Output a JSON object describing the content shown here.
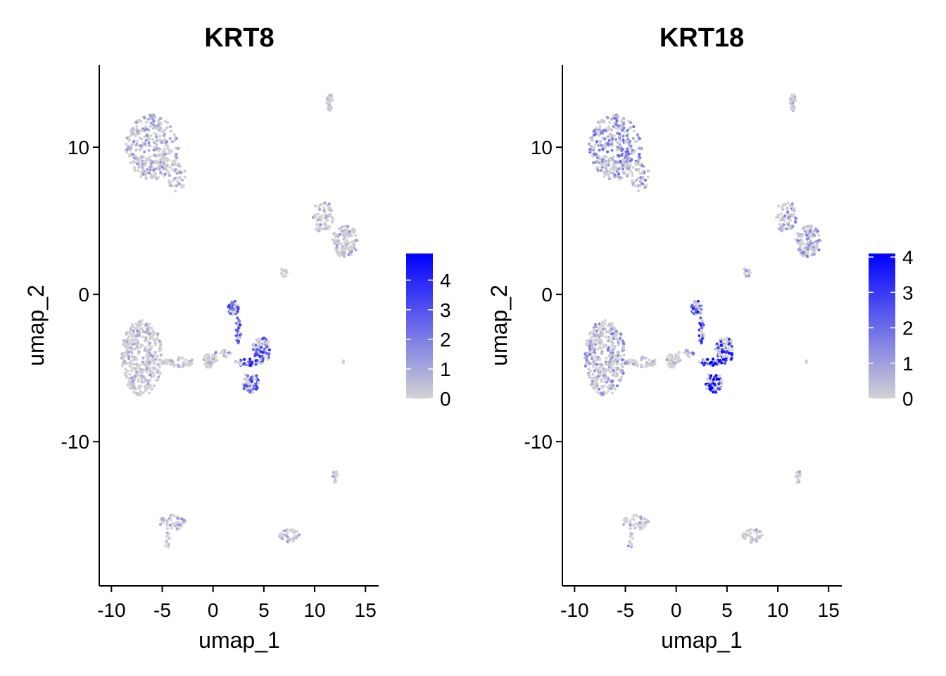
{
  "chart_data": [
    {
      "type": "scatter",
      "title": "KRT8",
      "xlabel": "umap_1",
      "ylabel": "umap_2",
      "xlim": [
        -11.2,
        16.3
      ],
      "ylim": [
        -19.8,
        15.6
      ],
      "x_ticks": [
        -10,
        -5,
        0,
        5,
        10,
        15
      ],
      "y_ticks": [
        -10,
        0,
        10
      ],
      "legend": {
        "placement": "right",
        "low_color": "#d3d3d3",
        "high_color": "#0000ff",
        "range": [
          0,
          4.9
        ],
        "ticks": [
          0,
          1,
          2,
          3,
          4
        ]
      }
    },
    {
      "type": "scatter",
      "title": "KRT18",
      "xlabel": "umap_1",
      "ylabel": "umap_2",
      "xlim": [
        -11.2,
        16.3
      ],
      "ylim": [
        -19.8,
        15.6
      ],
      "x_ticks": [
        -10,
        -5,
        0,
        5,
        10,
        15
      ],
      "y_ticks": [
        -10,
        0,
        10
      ],
      "legend": {
        "placement": "right",
        "low_color": "#d3d3d3",
        "high_color": "#0000ff",
        "range": [
          0,
          4.1
        ],
        "ticks": [
          0,
          1,
          2,
          3,
          4
        ]
      }
    }
  ],
  "clusters": [
    {
      "cx": -6.0,
      "cy": 10.0,
      "rx": 2.6,
      "ry": 2.2,
      "n": 340,
      "krt8": 0.7,
      "krt18": 1.2
    },
    {
      "cx": -3.5,
      "cy": 8.0,
      "rx": 0.9,
      "ry": 1.0,
      "n": 40,
      "krt8": 0.6,
      "krt18": 1.0
    },
    {
      "cx": 11.5,
      "cy": 13.0,
      "rx": 0.3,
      "ry": 0.6,
      "n": 30,
      "krt8": 0.2,
      "krt18": 0.4
    },
    {
      "cx": 10.8,
      "cy": 5.3,
      "rx": 1.0,
      "ry": 1.1,
      "n": 70,
      "krt8": 0.5,
      "krt18": 0.7
    },
    {
      "cx": 13.0,
      "cy": 3.6,
      "rx": 1.3,
      "ry": 1.1,
      "n": 120,
      "krt8": 0.6,
      "krt18": 0.9
    },
    {
      "cx": 7.0,
      "cy": 1.6,
      "rx": 0.3,
      "ry": 0.4,
      "n": 15,
      "krt8": 0.1,
      "krt18": 0.2
    },
    {
      "cx": -7.0,
      "cy": -4.3,
      "rx": 2.0,
      "ry": 2.6,
      "n": 360,
      "krt8": 0.4,
      "krt18": 0.8
    },
    {
      "cx": -3.5,
      "cy": -4.6,
      "rx": 1.6,
      "ry": 0.35,
      "n": 45,
      "krt8": 0.2,
      "krt18": 0.3
    },
    {
      "cx": -0.3,
      "cy": -4.5,
      "rx": 0.7,
      "ry": 0.5,
      "n": 45,
      "krt8": 0.2,
      "krt18": 0.5
    },
    {
      "cx": 2.0,
      "cy": -0.9,
      "rx": 0.5,
      "ry": 0.5,
      "n": 45,
      "krt8": 2.8,
      "krt18": 2.7
    },
    {
      "cx": 2.5,
      "cy": -2.4,
      "rx": 0.25,
      "ry": 1.0,
      "n": 30,
      "krt8": 3.0,
      "krt18": 3.0
    },
    {
      "cx": 4.8,
      "cy": -3.8,
      "rx": 0.9,
      "ry": 0.9,
      "n": 75,
      "krt8": 3.2,
      "krt18": 3.2
    },
    {
      "cx": 3.3,
      "cy": -4.6,
      "rx": 1.2,
      "ry": 0.25,
      "n": 40,
      "krt8": 3.6,
      "krt18": 3.6
    },
    {
      "cx": 3.7,
      "cy": -6.0,
      "rx": 0.8,
      "ry": 0.7,
      "n": 70,
      "krt8": 3.0,
      "krt18": 3.5
    },
    {
      "cx": 1.0,
      "cy": -4.0,
      "rx": 0.8,
      "ry": 0.3,
      "n": 15,
      "krt8": 1.2,
      "krt18": 1.5
    },
    {
      "cx": 12.8,
      "cy": -4.6,
      "rx": 0.1,
      "ry": 0.1,
      "n": 3,
      "krt8": 0.1,
      "krt18": 0.1
    },
    {
      "cx": 12.0,
      "cy": -12.3,
      "rx": 0.25,
      "ry": 0.5,
      "n": 15,
      "krt8": 0.3,
      "krt18": 0.4
    },
    {
      "cx": -4.0,
      "cy": -15.5,
      "rx": 1.4,
      "ry": 0.5,
      "n": 45,
      "krt8": 0.8,
      "krt18": 0.5
    },
    {
      "cx": -4.5,
      "cy": -16.8,
      "rx": 0.25,
      "ry": 0.6,
      "n": 10,
      "krt8": 0.8,
      "krt18": 0.5
    },
    {
      "cx": 7.5,
      "cy": -16.4,
      "rx": 1.0,
      "ry": 0.45,
      "n": 40,
      "krt8": 0.6,
      "krt18": 0.3
    }
  ]
}
